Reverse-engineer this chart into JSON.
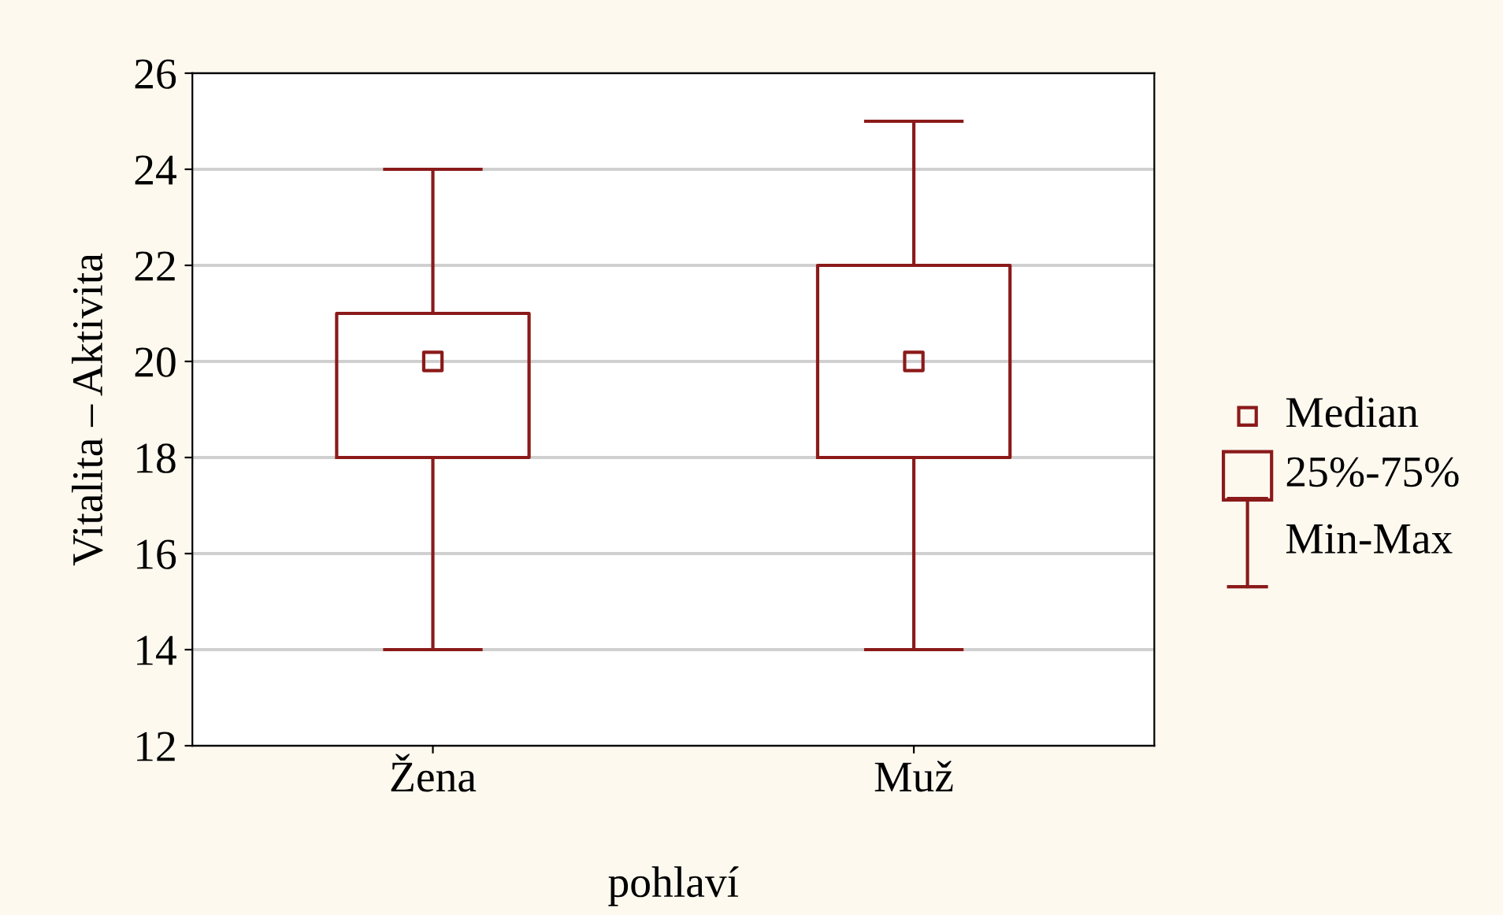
{
  "chart_data": {
    "type": "box",
    "xlabel": "pohlaví",
    "ylabel": "Vitalita – Aktivita",
    "categories": [
      "Žena",
      "Muž"
    ],
    "boxes": [
      {
        "low": 14,
        "q1": 18,
        "median": 20,
        "q3": 21,
        "high": 24
      },
      {
        "low": 14,
        "q1": 18,
        "median": 20,
        "q3": 22,
        "high": 25
      }
    ],
    "color": "#8b1a1a",
    "ylim": [
      12,
      26
    ],
    "yticks": [
      12,
      14,
      16,
      18,
      20,
      22,
      24,
      26
    ],
    "grid": "y",
    "marker": "square",
    "annotations": [
      "Median",
      "25%-75%",
      "Min-Max"
    ]
  }
}
